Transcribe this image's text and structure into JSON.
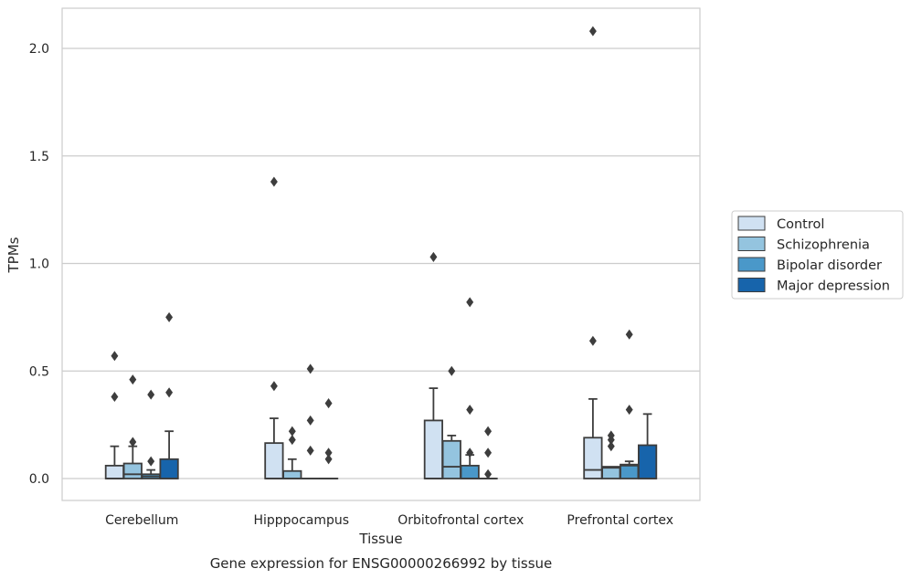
{
  "chart_data": {
    "type": "box",
    "title": "",
    "xlabel": "Tissue",
    "ylabel": "TPMs",
    "caption": "Gene expression for ENSG00000266992 by tissue",
    "ylim": [
      -0.1,
      2.2
    ],
    "yticks": [
      0.0,
      0.5,
      1.0,
      1.5,
      2.0
    ],
    "ytick_labels": [
      "0.0",
      "0.5",
      "1.0",
      "1.5",
      "2.0"
    ],
    "grid": "horizontal",
    "legend_position": "right",
    "categories": [
      "Cerebellum",
      "Hipppocampus",
      "Orbitofrontal cortex",
      "Prefrontal cortex"
    ],
    "series": [
      {
        "name": "Control",
        "color": "#d0e1f2",
        "boxes": [
          {
            "min": 0.0,
            "q1": 0.0,
            "median": 0.0,
            "q3": 0.06,
            "max": 0.15,
            "outliers": [
              0.38,
              0.57
            ]
          },
          {
            "min": 0.0,
            "q1": 0.0,
            "median": 0.0,
            "q3": 0.165,
            "max": 0.28,
            "outliers": [
              0.43,
              1.38
            ]
          },
          {
            "min": 0.0,
            "q1": 0.0,
            "median": 0.0,
            "q3": 0.27,
            "max": 0.42,
            "outliers": [
              1.03
            ]
          },
          {
            "min": 0.0,
            "q1": 0.0,
            "median": 0.04,
            "q3": 0.19,
            "max": 0.37,
            "outliers": [
              0.64,
              2.08
            ]
          }
        ]
      },
      {
        "name": "Schizophrenia",
        "color": "#94c4df",
        "boxes": [
          {
            "min": 0.0,
            "q1": 0.0,
            "median": 0.02,
            "q3": 0.07,
            "max": 0.15,
            "outliers": [
              0.17,
              0.46
            ]
          },
          {
            "min": 0.0,
            "q1": 0.0,
            "median": 0.0,
            "q3": 0.035,
            "max": 0.09,
            "outliers": [
              0.18,
              0.22
            ]
          },
          {
            "min": 0.0,
            "q1": 0.0,
            "median": 0.055,
            "q3": 0.175,
            "max": 0.2,
            "outliers": [
              0.5
            ]
          },
          {
            "min": 0.0,
            "q1": 0.0,
            "median": 0.05,
            "q3": 0.055,
            "max": 0.055,
            "outliers": [
              0.15,
              0.18,
              0.2
            ]
          }
        ]
      },
      {
        "name": "Bipolar disorder",
        "color": "#4a98c9",
        "boxes": [
          {
            "min": 0.0,
            "q1": 0.0,
            "median": 0.01,
            "q3": 0.02,
            "max": 0.04,
            "outliers": [
              0.08,
              0.39
            ]
          },
          {
            "min": 0.0,
            "q1": 0.0,
            "median": 0.0,
            "q3": 0.0,
            "max": 0.0,
            "outliers": [
              0.13,
              0.27,
              0.51
            ]
          },
          {
            "min": 0.0,
            "q1": 0.0,
            "median": 0.0,
            "q3": 0.06,
            "max": 0.11,
            "outliers": [
              0.12,
              0.32,
              0.82
            ]
          },
          {
            "min": 0.0,
            "q1": 0.0,
            "median": 0.06,
            "q3": 0.065,
            "max": 0.08,
            "outliers": [
              0.32,
              0.67
            ]
          }
        ]
      },
      {
        "name": "Major depression",
        "color": "#1764ab",
        "boxes": [
          {
            "min": 0.0,
            "q1": 0.0,
            "median": 0.0,
            "q3": 0.09,
            "max": 0.22,
            "outliers": [
              0.4,
              0.75
            ]
          },
          {
            "min": 0.0,
            "q1": 0.0,
            "median": 0.0,
            "q3": 0.0,
            "max": 0.0,
            "outliers": [
              0.09,
              0.12,
              0.35
            ]
          },
          {
            "min": 0.0,
            "q1": 0.0,
            "median": 0.0,
            "q3": 0.0,
            "max": 0.0,
            "outliers": [
              0.02,
              0.12,
              0.22
            ]
          },
          {
            "min": 0.0,
            "q1": 0.0,
            "median": 0.0,
            "q3": 0.155,
            "max": 0.3,
            "outliers": []
          }
        ]
      }
    ]
  }
}
